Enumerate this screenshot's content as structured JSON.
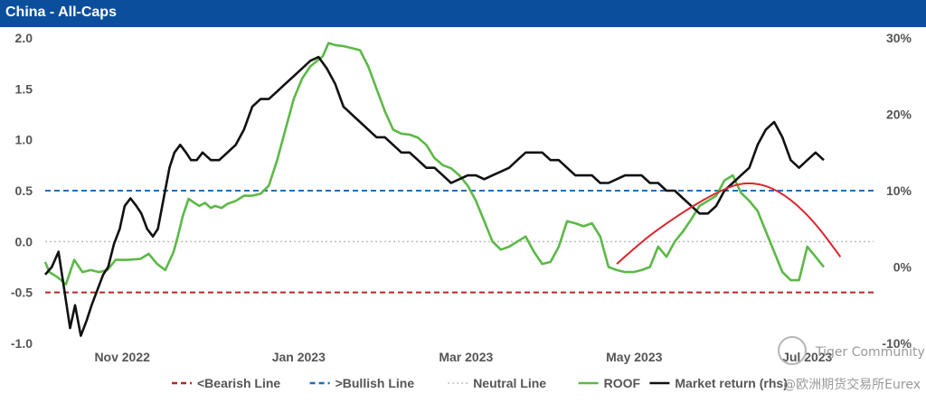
{
  "header": {
    "title": "China - All-Caps"
  },
  "colors": {
    "bearish": "#b02a2a",
    "bullish": "#1f6fb5",
    "neutral": "#bdbdbd",
    "roof": "#5cb947",
    "market": "#111111",
    "arc": "#d9262e"
  },
  "watermark": {
    "text1": "Tiger Community",
    "text2": "@欧洲期货交易所Eurex"
  },
  "chart_data": {
    "type": "line",
    "title": "China - All-Caps",
    "x_labels": [
      {
        "label": "Nov 2022",
        "x": 9.3
      },
      {
        "label": "Jan 2023",
        "x": 30.6
      },
      {
        "label": "Mar 2023",
        "x": 50.8
      },
      {
        "label": "May 2023",
        "x": 71.1
      }
    ],
    "y_left": {
      "min": -1.0,
      "max": 2.0,
      "ticks": [
        "2.0",
        "1.5",
        "1.0",
        "0.5",
        "0.0",
        "-0.5",
        "-1.0"
      ],
      "tick_values": [
        2.0,
        1.5,
        1.0,
        0.5,
        0.0,
        -0.5,
        -1.0
      ]
    },
    "y_right": {
      "min": -10,
      "max": 30,
      "ticks": [
        "30%",
        "20%",
        "10%",
        "0%",
        "-10%"
      ],
      "tick_values": [
        30,
        20,
        10,
        0,
        -10
      ]
    },
    "extra_x_label": {
      "label": "Jul 2023",
      "x": 92.0
    },
    "reference_lines": [
      {
        "name": "<Bearish Line",
        "y": -0.5,
        "style": "dashed"
      },
      {
        "name": ">Bullish Line",
        "y": 0.5,
        "style": "dashed"
      },
      {
        "name": "Neutral Line",
        "y": 0.0,
        "style": "dotted"
      }
    ],
    "series": [
      {
        "name": "ROOF",
        "axis": "left",
        "x": [
          0,
          0.5,
          1.5,
          2.5,
          3.5,
          4.5,
          5.5,
          6.5,
          7.5,
          8.5,
          10,
          11.5,
          12.5,
          13.5,
          14.5,
          15.5,
          16,
          16.6,
          17.3,
          18.0,
          18.6,
          19.3,
          20,
          20.5,
          21.3,
          22.0,
          23,
          24,
          25,
          26,
          27,
          28,
          29,
          30,
          31,
          32,
          33.5,
          34.2,
          35,
          36,
          37,
          38,
          39,
          40,
          41,
          42,
          43,
          44,
          45,
          46,
          47,
          48,
          49,
          50,
          51,
          52,
          53,
          54,
          55,
          56,
          57,
          58,
          59,
          60,
          61,
          62,
          63,
          64,
          65,
          66,
          67,
          68,
          69,
          70,
          71,
          72,
          73,
          74,
          75,
          76,
          77,
          78,
          79,
          80,
          81,
          82,
          83,
          84,
          85,
          86,
          87,
          88,
          89,
          90,
          91,
          92,
          93,
          94
        ],
        "values": [
          -0.2,
          -0.3,
          -0.35,
          -0.42,
          -0.18,
          -0.3,
          -0.28,
          -0.3,
          -0.28,
          -0.18,
          -0.18,
          -0.17,
          -0.12,
          -0.22,
          -0.28,
          -0.1,
          0.05,
          0.25,
          0.42,
          0.38,
          0.35,
          0.38,
          0.33,
          0.35,
          0.33,
          0.37,
          0.4,
          0.45,
          0.45,
          0.47,
          0.55,
          0.8,
          1.1,
          1.4,
          1.6,
          1.72,
          1.82,
          1.95,
          1.93,
          1.92,
          1.9,
          1.88,
          1.72,
          1.5,
          1.28,
          1.1,
          1.06,
          1.05,
          1.02,
          0.95,
          0.82,
          0.75,
          0.72,
          0.65,
          0.55,
          0.4,
          0.2,
          0.0,
          -0.08,
          -0.05,
          0.0,
          0.05,
          -0.1,
          -0.22,
          -0.2,
          -0.05,
          0.2,
          0.18,
          0.15,
          0.18,
          0.05,
          -0.25,
          -0.28,
          -0.3,
          -0.3,
          -0.28,
          -0.25,
          -0.05,
          -0.15,
          0.0,
          0.1,
          0.22,
          0.35,
          0.4,
          0.45,
          0.6,
          0.65,
          0.48,
          0.4,
          0.3,
          0.1,
          -0.1,
          -0.3,
          -0.38,
          -0.38,
          -0.05,
          -0.15,
          -0.25
        ]
      },
      {
        "name": "Market return (rhs)",
        "axis": "right",
        "x": [
          0,
          0.8,
          1.6,
          2.3,
          3,
          3.6,
          4.3,
          5,
          5.6,
          6.3,
          7,
          7.6,
          8.3,
          9,
          9.6,
          10.3,
          11,
          11.6,
          12.3,
          13,
          13.6,
          14.3,
          15,
          15.6,
          16.3,
          17,
          17.6,
          18.3,
          19,
          20,
          21,
          22,
          23,
          24,
          25,
          26,
          27,
          28,
          29,
          30,
          31,
          32,
          33,
          34,
          35,
          36,
          37,
          38,
          39,
          40,
          41,
          42,
          43,
          44,
          45,
          46,
          47,
          48,
          49,
          50,
          51,
          52,
          53,
          54,
          55,
          56,
          57,
          58,
          59,
          60,
          61,
          62,
          63,
          64,
          65,
          66,
          67,
          68,
          69,
          70,
          71,
          72,
          73,
          74,
          75,
          76,
          77,
          78,
          79,
          80,
          81,
          82,
          83,
          84,
          85,
          86,
          87,
          88,
          89,
          90,
          91,
          92,
          93,
          94
        ],
        "values": [
          -1,
          0,
          2,
          -3,
          -8,
          -5,
          -9,
          -7,
          -5,
          -3,
          -1,
          0,
          3,
          5,
          8,
          9,
          8,
          7,
          5,
          4,
          5,
          9,
          13,
          15,
          16,
          15,
          14,
          14,
          15,
          14,
          14,
          15,
          16,
          18,
          21,
          22,
          22,
          23,
          24,
          25,
          26,
          27,
          27.5,
          26,
          24,
          21,
          20,
          19,
          18,
          17,
          17,
          16,
          15,
          15,
          14,
          13,
          13,
          12,
          11,
          11.5,
          12,
          12,
          11.5,
          12,
          12.5,
          13,
          14,
          15,
          15,
          15,
          14,
          14,
          13,
          12,
          12,
          12,
          11,
          11,
          11.5,
          12,
          12,
          12,
          11,
          11,
          10,
          10,
          9,
          8,
          7,
          7,
          8,
          10,
          11,
          12,
          13,
          16,
          18,
          19,
          17,
          14,
          13,
          14,
          15,
          14
        ]
      }
    ],
    "annotation": {
      "type": "arc",
      "color": "#d9262e",
      "x": [
        69,
        72,
        75,
        78,
        81,
        84,
        87,
        90,
        93,
        96
      ],
      "values": [
        -0.22,
        0.0,
        0.18,
        0.34,
        0.48,
        0.58,
        0.56,
        0.42,
        0.18,
        -0.15
      ]
    },
    "legend": [
      {
        "label": "<Bearish Line",
        "kind": "dashed",
        "color_key": "bearish"
      },
      {
        "label": ">Bullish Line",
        "kind": "dashed",
        "color_key": "bullish"
      },
      {
        "label": "Neutral Line",
        "kind": "dotted",
        "color_key": "neutral"
      },
      {
        "label": "ROOF",
        "kind": "solid",
        "color_key": "roof"
      },
      {
        "label": "Market return (rhs)",
        "kind": "solid",
        "color_key": "market"
      }
    ],
    "legend_position": "bottom",
    "grid": false
  }
}
